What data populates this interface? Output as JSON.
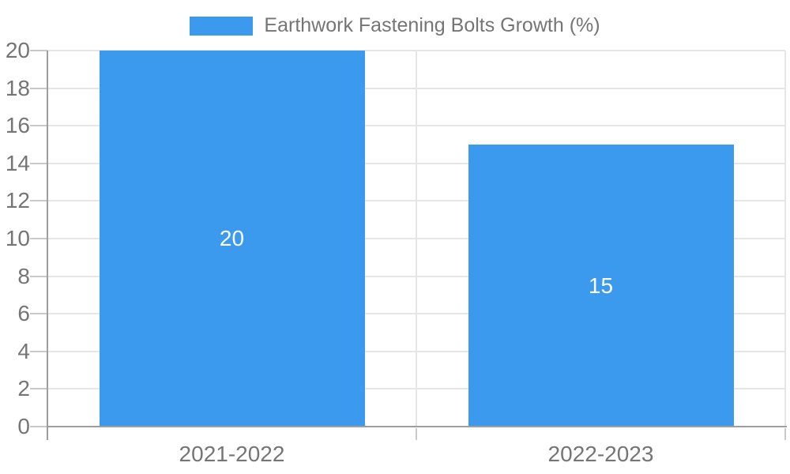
{
  "chart_data": {
    "type": "bar",
    "title": "",
    "series_name": "Earthwork Fastening Bolts Growth (%)",
    "categories": [
      "2021-2022",
      "2022-2023"
    ],
    "values": [
      20,
      15
    ],
    "data_labels": [
      "20",
      "15"
    ],
    "xlabel": "",
    "ylabel": "",
    "ylim": [
      0,
      20
    ],
    "ytick_step": 2,
    "yticks": [
      0,
      2,
      4,
      6,
      8,
      10,
      12,
      14,
      16,
      18,
      20
    ],
    "grid": true,
    "legend_position": "top-center",
    "colors": {
      "bar": "#3b99ee",
      "bar_value_label": "#ffffff",
      "axis": "#9e9e9e",
      "gridline": "#e6e6e6",
      "tick_mark": "#c9c9c9",
      "tick_text": "#757575",
      "legend_text": "#757575"
    }
  }
}
